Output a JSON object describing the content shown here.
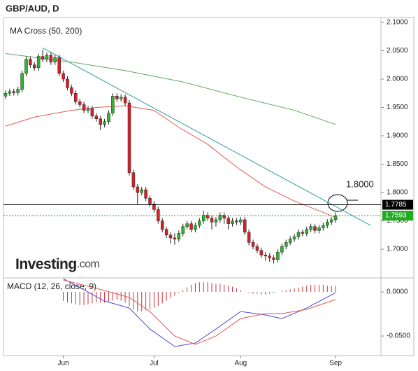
{
  "chart_data": {
    "type": "candlestick",
    "title": "GBP/AUD, D",
    "indicator": "MA Cross (50, 200)",
    "brand": "Investing",
    "brand_suffix": ".com",
    "annotation": "1.8000",
    "up_color": "#2db52d",
    "down_color": "#d8202a",
    "categories": [
      null,
      null,
      null,
      null,
      null,
      null,
      null,
      null,
      null,
      null,
      null,
      null,
      null,
      null,
      "Jun",
      null,
      null,
      null,
      null,
      null,
      null,
      null,
      null,
      null,
      null,
      null,
      null,
      null,
      null,
      null,
      null,
      null,
      null,
      null,
      null,
      null,
      "Jul",
      null,
      null,
      null,
      null,
      null,
      null,
      null,
      null,
      null,
      null,
      null,
      null,
      null,
      null,
      null,
      null,
      null,
      null,
      null,
      null,
      "Aug",
      null,
      null,
      null,
      null,
      null,
      null,
      null,
      null,
      null,
      null,
      null,
      null,
      null,
      null,
      null,
      null,
      null,
      null,
      null,
      null,
      null,
      null,
      "Sep"
    ],
    "open": [
      1.97,
      1.975,
      1.978,
      1.976,
      1.982,
      2.01,
      2.035,
      2.025,
      2.02,
      2.04,
      2.035,
      2.042,
      2.03,
      2.038,
      2.01,
      2.0,
      1.985,
      1.975,
      1.96,
      1.955,
      1.945,
      1.948,
      1.935,
      1.93,
      1.92,
      1.925,
      1.94,
      1.97,
      1.965,
      1.968,
      1.958,
      1.835,
      1.81,
      1.8,
      1.805,
      1.79,
      1.78,
      1.77,
      1.75,
      1.735,
      1.725,
      1.72,
      1.718,
      1.728,
      1.74,
      1.745,
      1.735,
      1.742,
      1.75,
      1.76,
      1.755,
      1.748,
      1.752,
      1.76,
      1.755,
      1.745,
      1.75,
      1.748,
      1.752,
      1.73,
      1.712,
      1.705,
      1.698,
      1.69,
      1.688,
      1.685,
      1.682,
      1.695,
      1.705,
      1.712,
      1.718,
      1.722,
      1.73,
      1.728,
      1.735,
      1.74,
      1.733,
      1.738,
      1.742,
      1.748,
      1.752
    ],
    "high": [
      1.98,
      1.983,
      1.983,
      1.987,
      2.015,
      2.04,
      2.04,
      2.03,
      2.045,
      2.052,
      2.047,
      2.047,
      2.043,
      2.043,
      2.015,
      2.005,
      1.99,
      1.98,
      1.965,
      1.96,
      1.953,
      1.953,
      1.94,
      1.935,
      1.93,
      1.945,
      1.975,
      1.975,
      1.973,
      1.973,
      1.963,
      1.84,
      1.815,
      1.81,
      1.81,
      1.795,
      1.785,
      1.775,
      1.755,
      1.74,
      1.73,
      1.728,
      1.733,
      1.745,
      1.75,
      1.75,
      1.747,
      1.755,
      1.768,
      1.765,
      1.76,
      1.757,
      1.765,
      1.765,
      1.76,
      1.755,
      1.755,
      1.757,
      1.757,
      1.735,
      1.717,
      1.71,
      1.703,
      1.695,
      1.693,
      1.69,
      1.7,
      1.71,
      1.717,
      1.723,
      1.727,
      1.735,
      1.735,
      1.74,
      1.745,
      1.745,
      1.743,
      1.747,
      1.753,
      1.757,
      1.765
    ],
    "low": [
      1.965,
      1.97,
      1.971,
      1.971,
      1.977,
      2.005,
      2.02,
      2.015,
      2.015,
      2.03,
      2.03,
      2.025,
      2.025,
      2.005,
      1.995,
      1.98,
      1.97,
      1.955,
      1.95,
      1.94,
      1.94,
      1.93,
      1.925,
      1.91,
      1.915,
      1.92,
      1.935,
      1.96,
      1.96,
      1.953,
      1.83,
      1.805,
      1.78,
      1.795,
      1.785,
      1.775,
      1.765,
      1.745,
      1.73,
      1.72,
      1.71,
      1.708,
      1.713,
      1.723,
      1.735,
      1.73,
      1.73,
      1.737,
      1.745,
      1.75,
      1.735,
      1.74,
      1.747,
      1.745,
      1.735,
      1.74,
      1.743,
      1.743,
      1.725,
      1.707,
      1.7,
      1.693,
      1.685,
      1.68,
      1.678,
      1.675,
      1.677,
      1.69,
      1.7,
      1.707,
      1.713,
      1.717,
      1.723,
      1.723,
      1.73,
      1.728,
      1.728,
      1.733,
      1.737,
      1.743,
      1.747
    ],
    "close": [
      1.975,
      1.978,
      1.976,
      1.982,
      2.01,
      2.035,
      2.025,
      2.02,
      2.04,
      2.035,
      2.042,
      2.03,
      2.038,
      2.01,
      2.0,
      1.985,
      1.975,
      1.96,
      1.955,
      1.945,
      1.948,
      1.935,
      1.93,
      1.92,
      1.925,
      1.94,
      1.97,
      1.965,
      1.968,
      1.958,
      1.835,
      1.81,
      1.8,
      1.805,
      1.79,
      1.78,
      1.77,
      1.75,
      1.735,
      1.725,
      1.72,
      1.718,
      1.728,
      1.74,
      1.745,
      1.735,
      1.742,
      1.75,
      1.76,
      1.755,
      1.748,
      1.752,
      1.76,
      1.755,
      1.745,
      1.75,
      1.748,
      1.752,
      1.73,
      1.712,
      1.705,
      1.698,
      1.69,
      1.688,
      1.685,
      1.682,
      1.695,
      1.705,
      1.712,
      1.718,
      1.722,
      1.73,
      1.728,
      1.735,
      1.74,
      1.733,
      1.738,
      1.742,
      1.748,
      1.752,
      1.7593
    ],
    "ma": [
      {
        "color": "#e8574f",
        "x": [
          0,
          7,
          16,
          22,
          29,
          36,
          42,
          49,
          56,
          63,
          70,
          77,
          80
        ],
        "values": [
          1.917,
          1.933,
          1.945,
          1.95,
          1.953,
          1.945,
          1.915,
          1.885,
          1.845,
          1.81,
          1.785,
          1.765,
          1.756
        ]
      },
      {
        "color": "#5aa85a",
        "x": [
          0,
          16,
          29,
          43,
          56,
          70,
          80
        ],
        "values": [
          2.045,
          2.03,
          2.015,
          1.995,
          1.97,
          1.945,
          1.92
        ]
      }
    ],
    "trendline": {
      "color": "#2a9d9a",
      "x": [
        9,
        88.5
      ],
      "values": [
        2.055,
        1.742
      ]
    },
    "price_lines": [
      {
        "value": 1.7785,
        "color": "#000000"
      },
      {
        "value": 1.7593,
        "color": "#22aa22"
      }
    ],
    "xlim": [
      -0.5,
      91
    ],
    "ylim": [
      1.652,
      2.1086
    ],
    "yticks": [
      {
        "value": 1.7,
        "label": "1.7000"
      },
      {
        "value": 1.75,
        "label": "1.7500"
      },
      {
        "value": 1.8,
        "label": "1.8000"
      },
      {
        "value": 1.85,
        "label": "1.8500"
      },
      {
        "value": 1.9,
        "label": "1.9000"
      },
      {
        "value": 1.95,
        "label": "1.9500"
      },
      {
        "value": 2.0,
        "label": "2.0000"
      },
      {
        "value": 2.05,
        "label": "2.0500"
      },
      {
        "value": 2.1,
        "label": "2.1000"
      }
    ],
    "macd": {
      "title": "MACD (12, 26, close, 9)",
      "ylim": [
        -0.0722,
        0.0159
      ],
      "yticks": [
        {
          "value": -0.05,
          "label": "-0.0500"
        },
        {
          "value": 0,
          "label": "0.0000"
        }
      ],
      "histogram_color": "#c8323a",
      "histogram": [
        null,
        null,
        null,
        null,
        null,
        null,
        null,
        null,
        null,
        null,
        null,
        null,
        null,
        null,
        -0.01,
        -0.012,
        -0.013,
        -0.014,
        -0.015,
        -0.015,
        -0.014,
        -0.013,
        -0.012,
        -0.012,
        -0.012,
        -0.011,
        -0.01,
        -0.009,
        -0.01,
        -0.012,
        -0.016,
        -0.02,
        -0.022,
        -0.022,
        -0.021,
        -0.02,
        -0.018,
        -0.016,
        -0.013,
        -0.01,
        -0.007,
        -0.004,
        -0.001,
        0.002,
        0.005,
        0.008,
        0.01,
        0.011,
        0.011,
        0.011,
        0.01,
        0.009,
        0.009,
        0.008,
        0.007,
        0.006,
        0.004,
        0.002,
        0.0,
        -0.001,
        -0.002,
        -0.002,
        -0.003,
        -0.003,
        -0.002,
        -0.001,
        0.0,
        0.001,
        0.002,
        0.003,
        0.004,
        0.005,
        0.006,
        0.007,
        0.008,
        0.008,
        0.008,
        0.008,
        0.007,
        0.007,
        0.007
      ],
      "lines": [
        {
          "color": "#4a4ad8",
          "x": [
            14,
            24,
            30,
            35,
            41,
            46,
            51,
            57,
            63,
            67,
            73,
            80
          ],
          "values": [
            0.015,
            -0.0103,
            -0.0183,
            -0.0421,
            -0.0619,
            -0.0579,
            -0.0421,
            -0.0222,
            -0.0262,
            -0.0302,
            -0.0183,
            -0.0008
          ]
        },
        {
          "color": "#e8574f",
          "x": [
            14,
            24,
            30,
            35,
            41,
            46,
            51,
            57,
            63,
            67,
            73,
            80
          ],
          "values": [
            0.0135,
            0.0016,
            -0.0063,
            -0.0222,
            -0.05,
            -0.0595,
            -0.05,
            -0.0302,
            -0.0246,
            -0.0246,
            -0.0198,
            -0.0087
          ]
        }
      ]
    }
  }
}
